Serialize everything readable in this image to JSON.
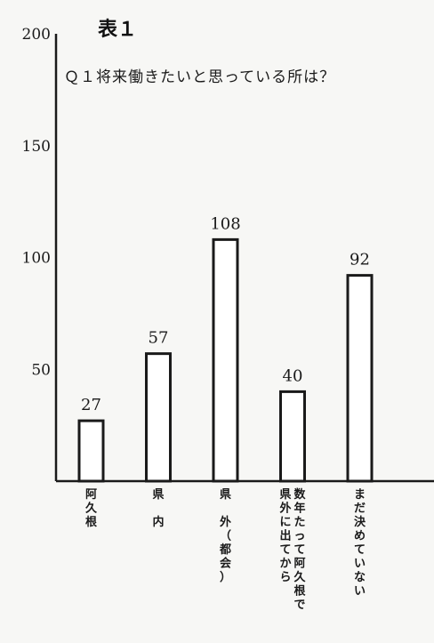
{
  "chart_data": {
    "type": "bar",
    "title": "表１",
    "subtitle": "Ｑ１将来働きたいと思っている所は？",
    "xlabel": "",
    "ylabel": "",
    "ylim": [
      0,
      200
    ],
    "yticks": [
      50,
      100,
      150,
      200
    ],
    "grid": false,
    "categories": [
      {
        "label": "阿久根",
        "columns": [
          "阿久根"
        ]
      },
      {
        "label": "県内",
        "columns": [
          "県　内"
        ]
      },
      {
        "label": "県外（都会）",
        "columns": [
          "県　外（都会）"
        ]
      },
      {
        "label": "数年たって阿久根で県外に出てから",
        "columns": [
          "数年たって阿久根で",
          "県外に出てから"
        ]
      },
      {
        "label": "まだ決めていない",
        "columns": [
          "まだ決めていない"
        ]
      }
    ],
    "values": [
      27,
      57,
      108,
      40,
      92
    ]
  }
}
